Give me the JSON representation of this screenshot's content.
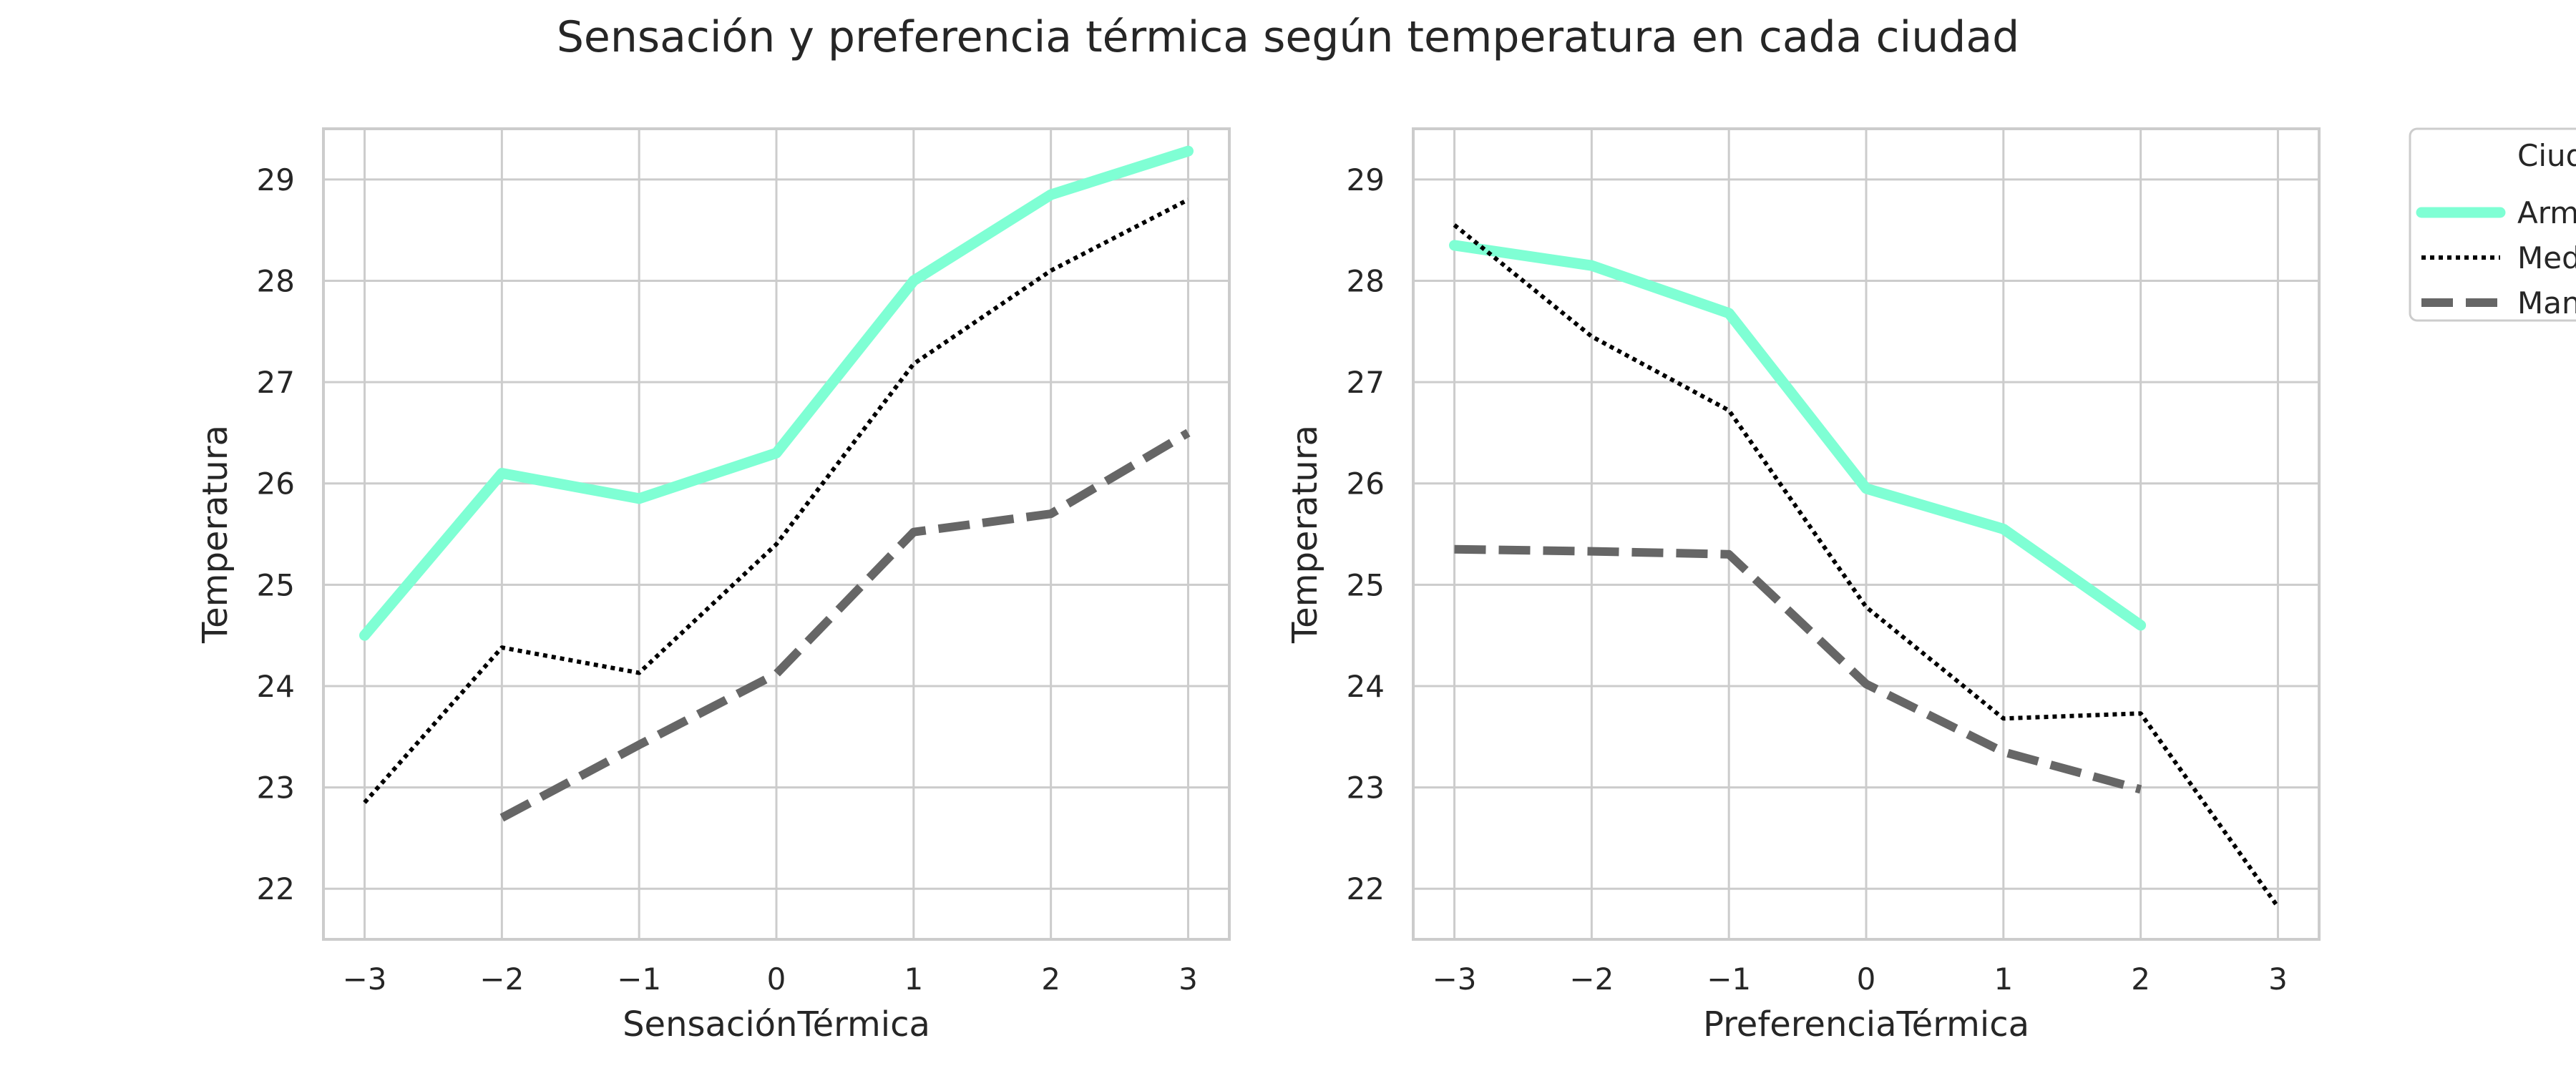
{
  "title": "Sensación y preferencia térmica según temperatura en cada ciudad",
  "colors": {
    "background": "#ffffff",
    "grid": "#cccccc",
    "axes_frame": "#cccccc",
    "text": "#262626",
    "series_armenia": "#7fffd4",
    "series_medellin": "#000000",
    "series_manizales": "#666666"
  },
  "legend": {
    "title": "Ciudad",
    "entries": [
      "Armenia",
      "Medellín",
      "Manizales"
    ],
    "placement": "outside-top-right (clipped)"
  },
  "chart_data": [
    {
      "type": "line",
      "xlabel": "SensaciónTérmica",
      "ylabel": "Temperatura",
      "xlim": [
        -3.3,
        3.3
      ],
      "ylim": [
        21.5,
        29.5
      ],
      "x_ticks": [
        -3,
        -2,
        -1,
        0,
        1,
        2,
        3
      ],
      "x_tick_labels": [
        "−3",
        "−2",
        "−1",
        "0",
        "1",
        "2",
        "3"
      ],
      "y_ticks": [
        22,
        23,
        24,
        25,
        26,
        27,
        28,
        29
      ],
      "y_tick_labels": [
        "22",
        "23",
        "24",
        "25",
        "26",
        "27",
        "28",
        "29"
      ],
      "grid": true,
      "series": [
        {
          "name": "Armenia",
          "style": "solid",
          "x": [
            -3,
            -2,
            -1,
            0,
            1,
            2,
            3
          ],
          "y": [
            24.5,
            26.1,
            25.85,
            26.3,
            28.0,
            28.85,
            29.28
          ]
        },
        {
          "name": "Medellín",
          "style": "dotted",
          "x": [
            -3,
            -2,
            -1,
            0,
            1,
            2,
            3
          ],
          "y": [
            22.85,
            24.38,
            24.13,
            25.4,
            27.18,
            28.1,
            28.8
          ]
        },
        {
          "name": "Manizales",
          "style": "dashed",
          "x": [
            -2,
            -1,
            0,
            1,
            2,
            3
          ],
          "y": [
            22.7,
            23.42,
            24.12,
            25.52,
            25.7,
            26.5
          ]
        }
      ]
    },
    {
      "type": "line",
      "xlabel": "PreferenciaTérmica",
      "ylabel": "Temperatura",
      "xlim": [
        -3.3,
        3.3
      ],
      "ylim": [
        21.5,
        29.5
      ],
      "x_ticks": [
        -3,
        -2,
        -1,
        0,
        1,
        2,
        3
      ],
      "x_tick_labels": [
        "−3",
        "−2",
        "−1",
        "0",
        "1",
        "2",
        "3"
      ],
      "y_ticks": [
        22,
        23,
        24,
        25,
        26,
        27,
        28,
        29
      ],
      "y_tick_labels": [
        "22",
        "23",
        "24",
        "25",
        "26",
        "27",
        "28",
        "29"
      ],
      "grid": true,
      "series": [
        {
          "name": "Armenia",
          "style": "solid",
          "x": [
            -3,
            -2,
            -1,
            0,
            1,
            2
          ],
          "y": [
            28.35,
            28.15,
            27.68,
            25.95,
            25.55,
            24.6
          ]
        },
        {
          "name": "Medellín",
          "style": "dotted",
          "x": [
            -3,
            -2,
            -1,
            0,
            1,
            2,
            3
          ],
          "y": [
            28.55,
            27.45,
            26.72,
            24.78,
            23.68,
            23.73,
            21.82
          ]
        },
        {
          "name": "Manizales",
          "style": "dashed",
          "x": [
            -3,
            -2,
            -1,
            0,
            1,
            2
          ],
          "y": [
            25.35,
            25.33,
            25.3,
            24.02,
            23.35,
            22.98
          ]
        }
      ]
    }
  ]
}
